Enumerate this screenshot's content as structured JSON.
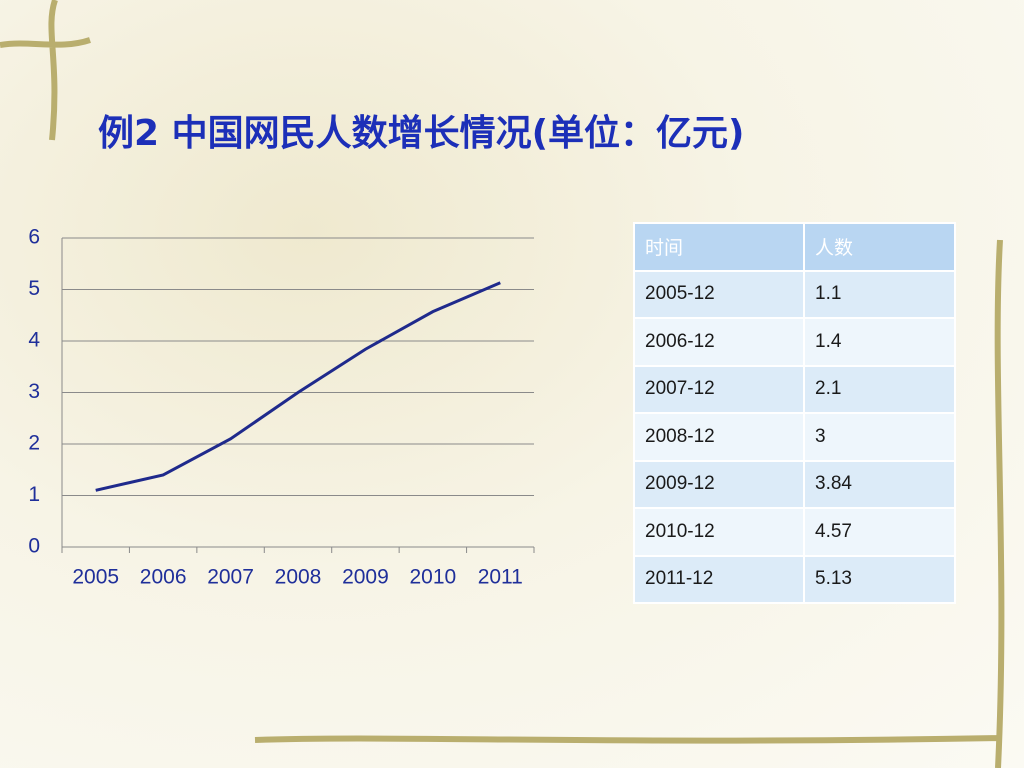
{
  "chart_data": {
    "type": "line",
    "title": "例2  中国网民人数增长情况(单位：亿元)",
    "categories": [
      "2005",
      "2006",
      "2007",
      "2008",
      "2009",
      "2010",
      "2011"
    ],
    "values": [
      1.1,
      1.4,
      2.1,
      3,
      3.84,
      4.57,
      5.13
    ],
    "color": "#1f2a8c",
    "ylim": [
      0,
      6
    ],
    "yticks": [
      0,
      1,
      2,
      3,
      4,
      5,
      6
    ],
    "grid": true
  },
  "table": {
    "header": [
      "时间",
      "人数"
    ],
    "rows": [
      [
        "2005-12",
        "1.1"
      ],
      [
        "2006-12",
        "1.4"
      ],
      [
        "2007-12",
        "2.1"
      ],
      [
        "2008-12",
        "3"
      ],
      [
        "2009-12",
        "3.84"
      ],
      [
        "2010-12",
        "4.57"
      ],
      [
        "2011-12",
        "5.13"
      ]
    ]
  }
}
